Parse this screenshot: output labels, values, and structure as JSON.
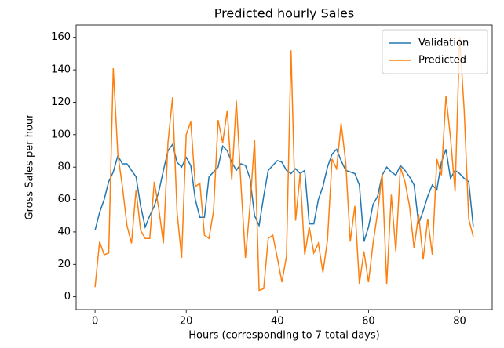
{
  "chart_data": {
    "type": "line",
    "title": "Predicted hourly Sales",
    "xlabel": "Hours (corresponding to 7 total days)",
    "ylabel": "Gross Sales per hour",
    "x": [
      0,
      1,
      2,
      3,
      4,
      5,
      6,
      7,
      8,
      9,
      10,
      11,
      12,
      13,
      14,
      15,
      16,
      17,
      18,
      19,
      20,
      21,
      22,
      23,
      24,
      25,
      26,
      27,
      28,
      29,
      30,
      31,
      32,
      33,
      34,
      35,
      36,
      37,
      38,
      39,
      40,
      41,
      42,
      43,
      44,
      45,
      46,
      47,
      48,
      49,
      50,
      51,
      52,
      53,
      54,
      55,
      56,
      57,
      58,
      59,
      60,
      61,
      62,
      63,
      64,
      65,
      66,
      67,
      68,
      69,
      70,
      71,
      72,
      73,
      74,
      75,
      76,
      77,
      78,
      79,
      80,
      81,
      82,
      83
    ],
    "series": [
      {
        "name": "Validation",
        "color": "#1f77b4",
        "values": [
          41,
          52,
          60,
          71,
          77,
          87,
          82,
          82,
          78,
          74,
          56,
          43,
          50,
          56,
          65,
          78,
          90,
          94,
          83,
          80,
          86,
          81,
          60,
          49,
          49,
          74,
          77,
          80,
          93,
          90,
          83,
          78,
          82,
          81,
          73,
          50,
          44,
          62,
          78,
          81,
          84,
          83,
          78,
          76,
          79,
          76,
          78,
          45,
          45,
          60,
          68,
          80,
          88,
          91,
          84,
          78,
          77,
          76,
          69,
          34,
          43,
          57,
          62,
          75,
          80,
          77,
          75,
          81,
          78,
          74,
          69,
          45,
          53,
          62,
          69,
          66,
          83,
          91,
          73,
          78,
          76,
          73,
          71,
          43
        ]
      },
      {
        "name": "Predicted",
        "color": "#ff7f0e",
        "values": [
          6,
          34,
          26,
          27,
          141,
          88,
          68,
          44,
          33,
          66,
          41,
          36,
          36,
          71,
          54,
          33,
          95,
          123,
          52,
          24,
          100,
          108,
          68,
          70,
          38,
          36,
          53,
          109,
          95,
          115,
          72,
          121,
          70,
          24,
          56,
          97,
          4,
          5,
          36,
          38,
          24,
          9,
          25,
          152,
          47,
          76,
          26,
          43,
          27,
          33,
          15,
          35,
          85,
          79,
          107,
          83,
          34,
          56,
          8,
          28,
          9,
          33,
          52,
          76,
          8,
          63,
          28,
          80,
          71,
          56,
          30,
          51,
          23,
          48,
          26,
          85,
          75,
          124,
          98,
          65,
          160,
          115,
          48,
          37
        ]
      }
    ],
    "xlim": [
      -4.15,
      87.15
    ],
    "xticks": [
      0,
      20,
      40,
      60,
      80
    ],
    "ylim": [
      -7.9,
      167.6
    ],
    "yticks": [
      0,
      20,
      40,
      60,
      80,
      100,
      120,
      140,
      160
    ],
    "legend": "upper right"
  }
}
